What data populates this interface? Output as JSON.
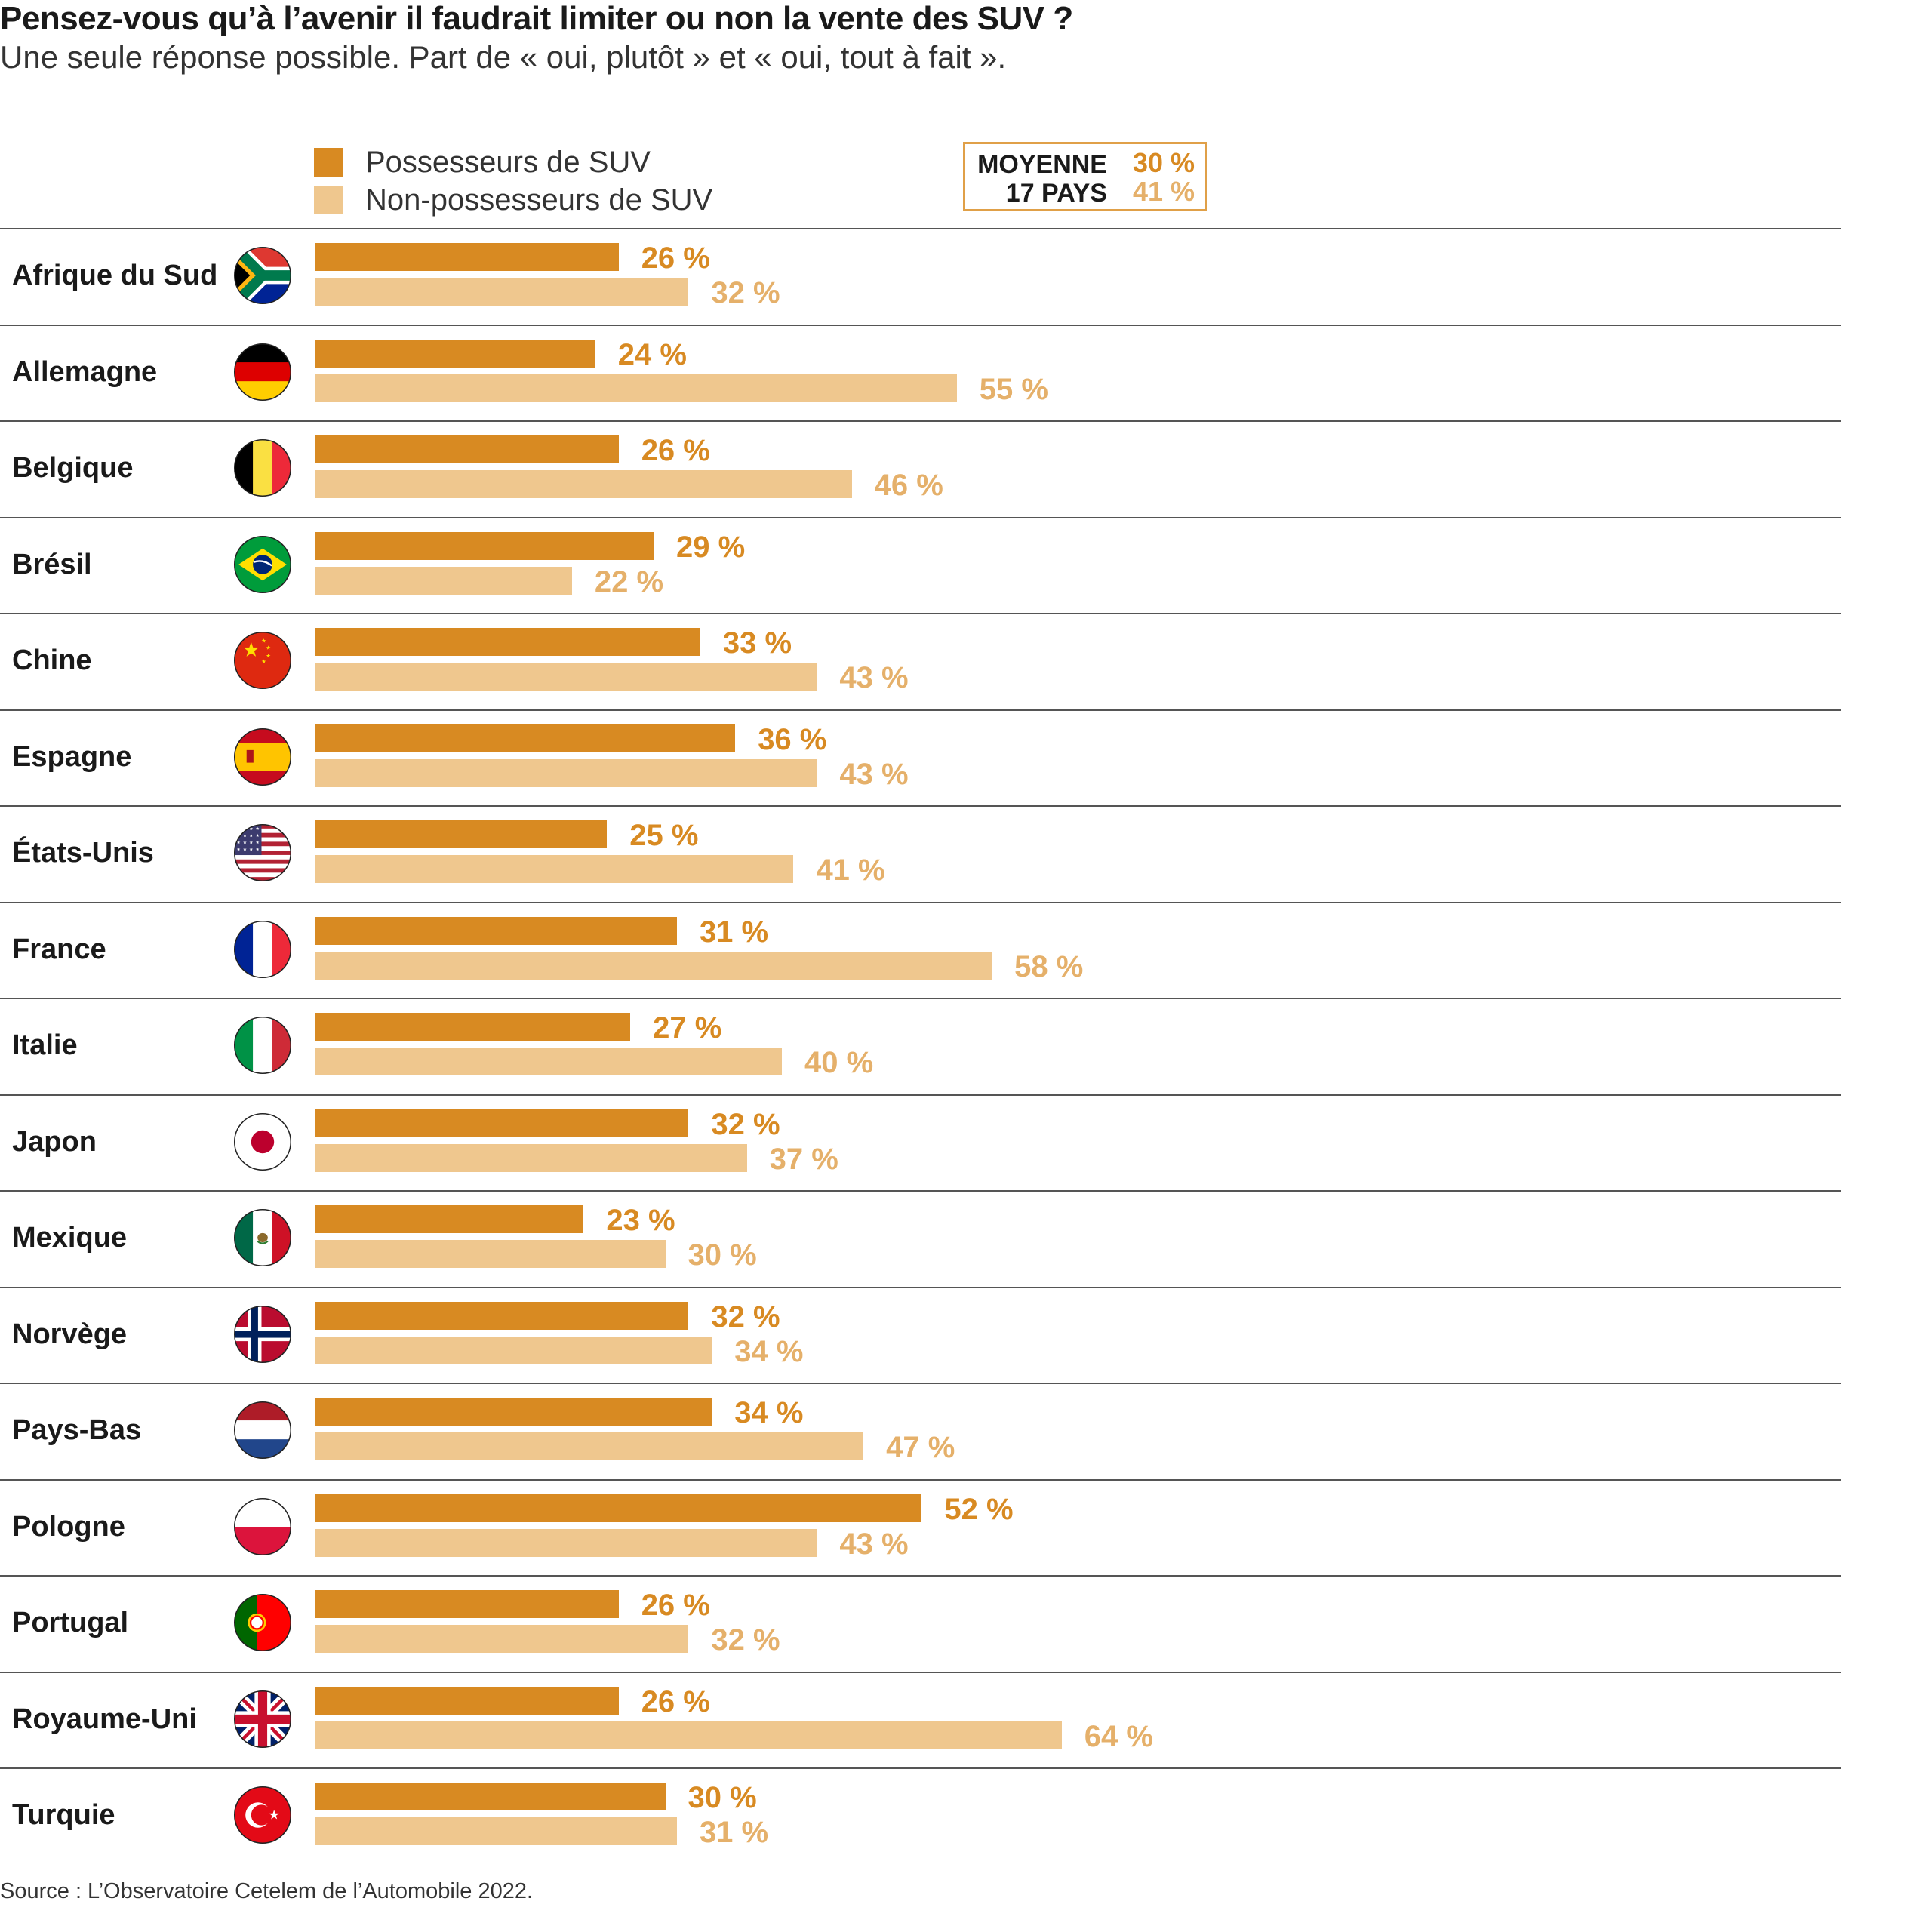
{
  "title": "Pensez-vous qu’à l’avenir il faudrait limiter ou non la vente des SUV ?",
  "subtitle": "Une seule réponse possible. Part de « oui, plutôt » et « oui, tout à fait ».",
  "source": "Source : L’Observatoire Cetelem de l’Automobile 2022.",
  "colors": {
    "owners": "#d88a22",
    "non_owners": "#efc78e",
    "owners_text": "#d88a22",
    "non_owners_text": "#e5b06a",
    "rule": "#555555"
  },
  "average": {
    "label_line1": "MOYENNE",
    "label_line2": "17 PAYS",
    "owners": "30 %",
    "non_owners": "41 %"
  },
  "chart_data": {
    "type": "bar",
    "orientation": "horizontal",
    "title": "Pensez-vous qu’à l’avenir il faudrait limiter ou non la vente des SUV ?",
    "unit": "%",
    "xlim": [
      0,
      100
    ],
    "categories": [
      "Afrique du Sud",
      "Allemagne",
      "Belgique",
      "Brésil",
      "Chine",
      "Espagne",
      "États-Unis",
      "France",
      "Italie",
      "Japon",
      "Mexique",
      "Norvège",
      "Pays-Bas",
      "Pologne",
      "Portugal",
      "Royaume-Uni",
      "Turquie"
    ],
    "flags": [
      "za-flag-icon",
      "de-flag-icon",
      "be-flag-icon",
      "br-flag-icon",
      "cn-flag-icon",
      "es-flag-icon",
      "us-flag-icon",
      "fr-flag-icon",
      "it-flag-icon",
      "jp-flag-icon",
      "mx-flag-icon",
      "no-flag-icon",
      "nl-flag-icon",
      "pl-flag-icon",
      "pt-flag-icon",
      "uk-flag-icon",
      "tr-flag-icon"
    ],
    "series": [
      {
        "name": "Possesseurs de SUV",
        "values": [
          26,
          24,
          26,
          29,
          33,
          36,
          25,
          31,
          27,
          32,
          23,
          32,
          34,
          52,
          26,
          26,
          30
        ]
      },
      {
        "name": "Non-possesseurs de SUV",
        "values": [
          32,
          55,
          46,
          22,
          43,
          43,
          41,
          58,
          40,
          37,
          30,
          34,
          47,
          43,
          32,
          64,
          31
        ]
      }
    ],
    "value_suffix": " %"
  }
}
